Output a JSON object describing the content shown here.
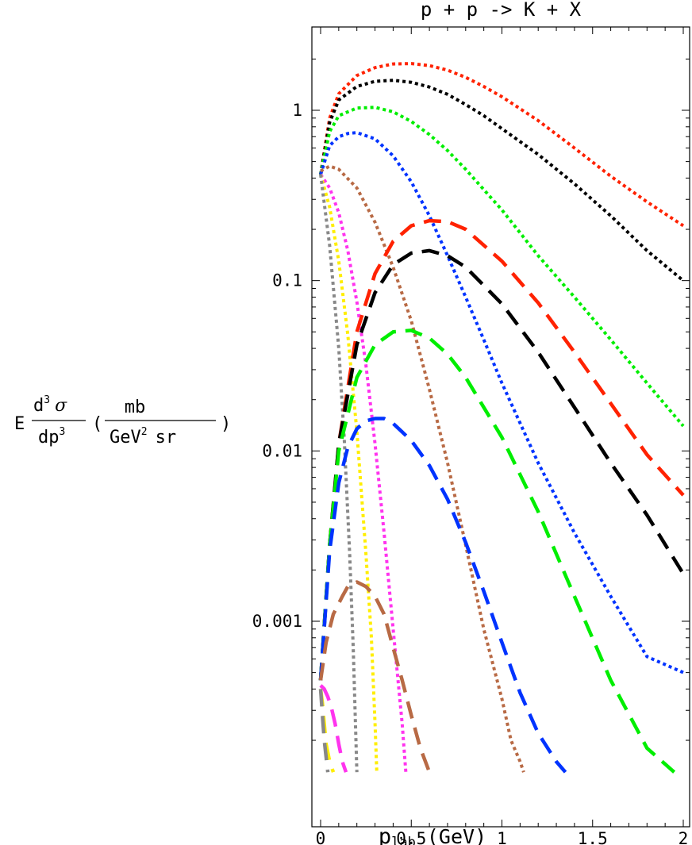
{
  "chart_data": {
    "type": "line",
    "title": "p + p -> K + X",
    "xlabel_main": "p",
    "xlabel_sub": "lab",
    "xlabel_unit": "(GeV)",
    "ylabel": {
      "prefix": "E",
      "numerator": "d",
      "numerator_sup": "3",
      "numerator_symbol": "σ",
      "denominator": "dp",
      "denominator_sup": "3",
      "open_paren": "(",
      "unit_numerator": "mb",
      "unit_denominator_a": "GeV",
      "unit_denominator_sup": "2",
      "unit_denominator_b": "sr",
      "close_paren": ")"
    },
    "xlim": [
      0,
      2
    ],
    "ylim": [
      0.00013,
      2.7
    ],
    "yscale": "log",
    "xticks": [
      {
        "value": 0,
        "label": "0"
      },
      {
        "value": 0.5,
        "label": "0.5"
      },
      {
        "value": 1,
        "label": "1"
      },
      {
        "value": 1.5,
        "label": "1.5"
      },
      {
        "value": 2,
        "label": "2"
      }
    ],
    "yticks": [
      {
        "value": 1,
        "label": "1"
      },
      {
        "value": 0.1,
        "label": "0.1"
      },
      {
        "value": 0.01,
        "label": "0.01"
      },
      {
        "value": 0.001,
        "label": "0.001"
      }
    ],
    "grid": false,
    "legend": "none",
    "series": [
      {
        "color": "#ff2200",
        "dash": "dotted",
        "x": [
          0,
          0.05,
          0.1,
          0.2,
          0.3,
          0.4,
          0.5,
          0.6,
          0.7,
          0.8,
          0.9,
          1.0,
          1.2,
          1.4,
          1.6,
          1.8,
          2.0
        ],
        "y": [
          0.42,
          0.9,
          1.25,
          1.6,
          1.78,
          1.87,
          1.88,
          1.83,
          1.72,
          1.56,
          1.38,
          1.2,
          0.87,
          0.6,
          0.41,
          0.29,
          0.21
        ]
      },
      {
        "color": "#000000",
        "dash": "dotted",
        "x": [
          0,
          0.05,
          0.1,
          0.2,
          0.3,
          0.4,
          0.5,
          0.6,
          0.7,
          0.8,
          0.9,
          1.0,
          1.2,
          1.4,
          1.6,
          1.8,
          2.0
        ],
        "y": [
          0.42,
          0.85,
          1.15,
          1.38,
          1.48,
          1.5,
          1.46,
          1.37,
          1.24,
          1.08,
          0.93,
          0.78,
          0.55,
          0.37,
          0.24,
          0.15,
          0.1
        ]
      },
      {
        "color": "#00ee00",
        "dash": "dotted",
        "x": [
          0,
          0.05,
          0.1,
          0.2,
          0.3,
          0.4,
          0.5,
          0.6,
          0.7,
          0.8,
          1.0,
          1.2,
          1.4,
          1.6,
          1.8,
          2.0
        ],
        "y": [
          0.42,
          0.75,
          0.93,
          1.03,
          1.04,
          0.98,
          0.86,
          0.72,
          0.58,
          0.45,
          0.26,
          0.14,
          0.08,
          0.045,
          0.025,
          0.014
        ]
      },
      {
        "color": "#0033ff",
        "dash": "dotted",
        "x": [
          0,
          0.05,
          0.1,
          0.15,
          0.2,
          0.3,
          0.4,
          0.5,
          0.6,
          0.7,
          0.8,
          0.9,
          1.0,
          1.2,
          1.4,
          1.6,
          1.8,
          2.0
        ],
        "y": [
          0.42,
          0.62,
          0.7,
          0.73,
          0.74,
          0.68,
          0.54,
          0.38,
          0.24,
          0.14,
          0.08,
          0.045,
          0.025,
          0.0085,
          0.0033,
          0.0014,
          0.00062,
          0.0005
        ]
      },
      {
        "color": "#b86a45",
        "dash": "dotted",
        "x": [
          0,
          0.05,
          0.1,
          0.2,
          0.3,
          0.4,
          0.5,
          0.6,
          0.7,
          0.8,
          0.9,
          1.0,
          1.05,
          1.1,
          1.12
        ],
        "y": [
          0.44,
          0.47,
          0.45,
          0.35,
          0.22,
          0.12,
          0.058,
          0.023,
          0.0085,
          0.0028,
          0.0009,
          0.00035,
          0.0002,
          0.00015,
          0.00013
        ]
      },
      {
        "color": "#ff33ee",
        "dash": "dotted",
        "x": [
          0,
          0.05,
          0.1,
          0.15,
          0.2,
          0.25,
          0.3,
          0.35,
          0.4,
          0.45,
          0.47
        ],
        "y": [
          0.42,
          0.35,
          0.25,
          0.15,
          0.075,
          0.032,
          0.011,
          0.0033,
          0.0009,
          0.00025,
          0.00013
        ]
      },
      {
        "color": "#ffee00",
        "dash": "dotted",
        "x": [
          0,
          0.05,
          0.1,
          0.15,
          0.2,
          0.25,
          0.28,
          0.3,
          0.31
        ],
        "y": [
          0.42,
          0.27,
          0.13,
          0.048,
          0.013,
          0.0025,
          0.0008,
          0.00025,
          0.00013
        ]
      },
      {
        "color": "#888888",
        "dash": "dotted",
        "x": [
          0,
          0.05,
          0.1,
          0.13,
          0.16,
          0.18,
          0.2
        ],
        "y": [
          0.42,
          0.16,
          0.04,
          0.012,
          0.0025,
          0.0007,
          0.00013
        ]
      },
      {
        "color": "#ff2200",
        "dash": "dashed",
        "x": [
          0,
          0.05,
          0.1,
          0.2,
          0.3,
          0.4,
          0.5,
          0.6,
          0.7,
          0.8,
          1.0,
          1.2,
          1.4,
          1.6,
          1.8,
          2.0
        ],
        "y": [
          0.00045,
          0.0028,
          0.011,
          0.05,
          0.11,
          0.17,
          0.21,
          0.225,
          0.222,
          0.2,
          0.13,
          0.074,
          0.038,
          0.019,
          0.0095,
          0.0055
        ]
      },
      {
        "color": "#000000",
        "dash": "dashed",
        "x": [
          0,
          0.05,
          0.1,
          0.2,
          0.3,
          0.4,
          0.5,
          0.6,
          0.7,
          0.8,
          1.0,
          1.2,
          1.4,
          1.6,
          1.8,
          2.0
        ],
        "y": [
          0.00045,
          0.0028,
          0.011,
          0.042,
          0.085,
          0.124,
          0.145,
          0.15,
          0.14,
          0.12,
          0.073,
          0.038,
          0.018,
          0.0085,
          0.0042,
          0.0019
        ]
      },
      {
        "color": "#00ee00",
        "dash": "dashed",
        "x": [
          0,
          0.05,
          0.1,
          0.2,
          0.3,
          0.4,
          0.5,
          0.6,
          0.7,
          0.8,
          1.0,
          1.2,
          1.4,
          1.6,
          1.8,
          1.95
        ],
        "y": [
          0.00045,
          0.0028,
          0.01,
          0.027,
          0.042,
          0.05,
          0.051,
          0.046,
          0.037,
          0.027,
          0.012,
          0.0044,
          0.0014,
          0.00045,
          0.00018,
          0.00013
        ]
      },
      {
        "color": "#0033ff",
        "dash": "dashed",
        "x": [
          0,
          0.05,
          0.1,
          0.15,
          0.2,
          0.25,
          0.3,
          0.35,
          0.4,
          0.5,
          0.6,
          0.7,
          0.8,
          0.9,
          1.0,
          1.1,
          1.2,
          1.3,
          1.35
        ],
        "y": [
          0.00045,
          0.0026,
          0.0065,
          0.0105,
          0.0135,
          0.015,
          0.0155,
          0.0155,
          0.0145,
          0.0115,
          0.0082,
          0.0052,
          0.0029,
          0.0015,
          0.00075,
          0.00038,
          0.00022,
          0.00015,
          0.00013
        ]
      },
      {
        "color": "#b86a45",
        "dash": "dashed",
        "x": [
          0,
          0.03,
          0.07,
          0.12,
          0.15,
          0.2,
          0.25,
          0.3,
          0.35,
          0.4,
          0.45,
          0.5,
          0.55,
          0.6
        ],
        "y": [
          0.00045,
          0.00075,
          0.0011,
          0.0014,
          0.0016,
          0.0017,
          0.0016,
          0.0014,
          0.0011,
          0.0007,
          0.00045,
          0.00028,
          0.00018,
          0.00013
        ]
      },
      {
        "color": "#ff33ee",
        "dash": "dashed",
        "x": [
          0,
          0.02,
          0.04,
          0.06,
          0.08,
          0.1,
          0.12,
          0.14
        ],
        "y": [
          0.00042,
          0.0004,
          0.00036,
          0.00031,
          0.00025,
          0.00019,
          0.00015,
          0.00013
        ]
      },
      {
        "color": "#ffee00",
        "dash": "dashed",
        "x": [
          0,
          0.01,
          0.02,
          0.03,
          0.05,
          0.07
        ],
        "y": [
          0.0004,
          0.00033,
          0.00025,
          0.00019,
          0.00015,
          0.00013
        ]
      },
      {
        "color": "#888888",
        "dash": "dashed",
        "x": [
          0,
          0.01,
          0.02,
          0.03,
          0.04
        ],
        "y": [
          0.0004,
          0.00028,
          0.0002,
          0.00016,
          0.00013
        ]
      }
    ]
  }
}
